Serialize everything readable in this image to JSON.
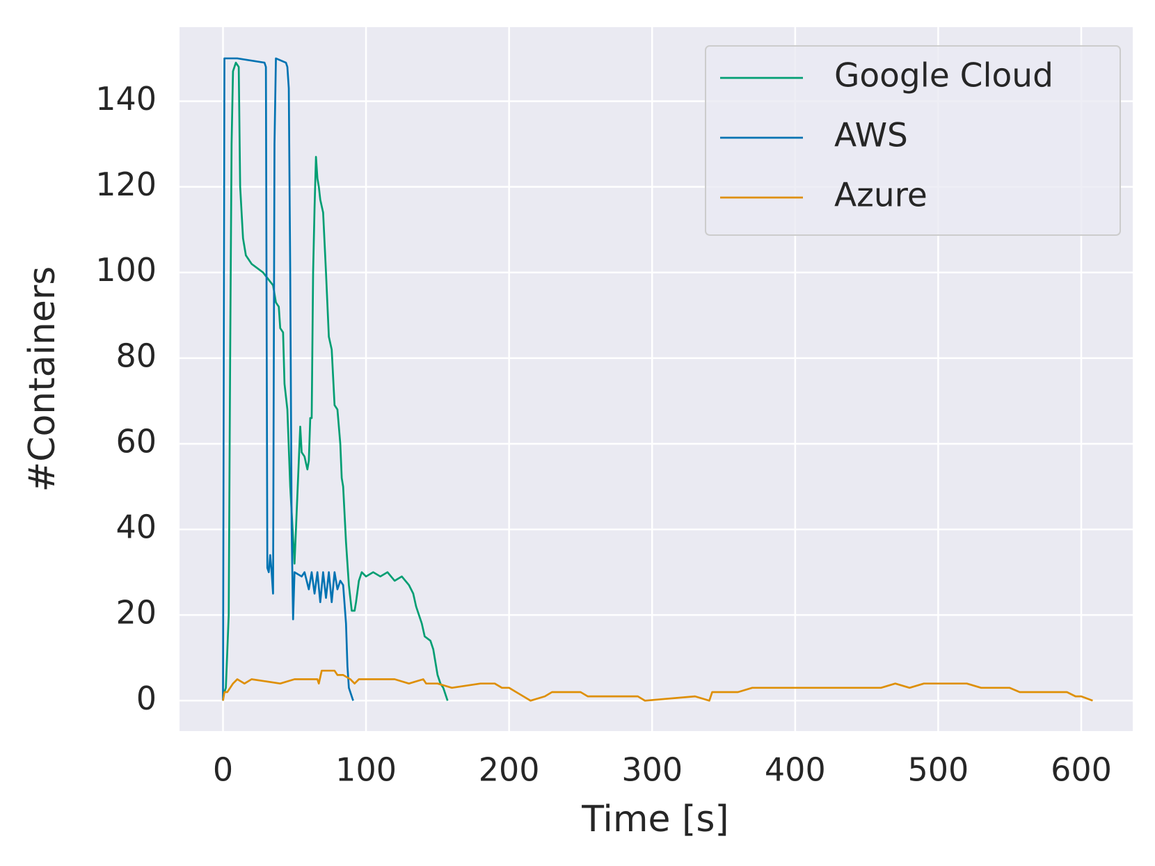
{
  "chart_data": {
    "type": "line",
    "xlabel": "Time [s]",
    "ylabel": "#Containers",
    "xlim": [
      -30.4,
      636
    ],
    "ylim": [
      -7.1,
      157.3
    ],
    "xticks": [
      0,
      100,
      200,
      300,
      400,
      500,
      600
    ],
    "yticks": [
      0,
      20,
      40,
      60,
      80,
      100,
      120,
      140
    ],
    "grid": true,
    "legend": "upper right",
    "series": [
      {
        "name": "Google Cloud",
        "color": "#029e73",
        "x": [
          0,
          2,
          4,
          5,
          6,
          7,
          9,
          11,
          12,
          14,
          16,
          20,
          28,
          35,
          37,
          39,
          40,
          42,
          43,
          45,
          47,
          49,
          50,
          51,
          52,
          54,
          55,
          57,
          59,
          60,
          61,
          62,
          63,
          64,
          65,
          66,
          67,
          68,
          70,
          72,
          74,
          76,
          78,
          80,
          82,
          83,
          84,
          86,
          88,
          89,
          90,
          92,
          93,
          95,
          97,
          100,
          105,
          110,
          115,
          120,
          125,
          130,
          133,
          135,
          137,
          139,
          141,
          145,
          147,
          148,
          150,
          152,
          154,
          156,
          157
        ],
        "values": [
          1,
          3,
          20,
          80,
          130,
          147,
          149,
          148,
          120,
          108,
          104,
          102,
          100,
          97,
          93,
          92,
          87,
          86,
          74,
          68,
          50,
          38,
          32,
          40,
          48,
          64,
          58,
          57,
          54,
          56,
          66,
          66,
          100,
          115,
          127,
          122,
          120,
          117,
          114,
          100,
          85,
          82,
          69,
          68,
          60,
          52,
          50,
          37,
          27,
          24,
          21,
          21,
          23,
          28,
          30,
          29,
          30,
          29,
          30,
          28,
          29,
          27,
          25,
          22,
          20,
          18,
          15,
          14,
          12,
          10,
          6,
          4,
          3,
          1,
          0
        ]
      },
      {
        "name": "AWS",
        "color": "#0173b2",
        "x": [
          0,
          1,
          10,
          29,
          30,
          31,
          32,
          33,
          34,
          35,
          36,
          37,
          44,
          45,
          46,
          47,
          48,
          49,
          50,
          55,
          57,
          60,
          62,
          64,
          66,
          68,
          70,
          72,
          74,
          76,
          78,
          80,
          82,
          84,
          86,
          87,
          88,
          90,
          91
        ],
        "values": [
          0,
          150,
          150,
          149,
          148,
          31,
          30,
          34,
          30,
          25,
          130,
          150,
          149,
          148,
          143,
          100,
          40,
          19,
          30,
          29,
          30,
          26,
          30,
          25,
          30,
          23,
          30,
          24,
          30,
          23,
          30,
          26,
          28,
          27,
          18,
          8,
          3,
          1,
          0
        ]
      },
      {
        "name": "Azure",
        "color": "#de8f05",
        "x": [
          0,
          1,
          3,
          5,
          7,
          10,
          15,
          20,
          40,
          50,
          66,
          67,
          69,
          78,
          80,
          84,
          89,
          92,
          95,
          110,
          120,
          130,
          140,
          142,
          150,
          160,
          180,
          190,
          195,
          200,
          205,
          210,
          215,
          225,
          230,
          250,
          255,
          270,
          290,
          295,
          330,
          340,
          342,
          350,
          360,
          370,
          400,
          440,
          460,
          470,
          480,
          490,
          520,
          530,
          550,
          557,
          590,
          596,
          600,
          608
        ],
        "values": [
          0,
          2,
          2,
          3,
          4,
          5,
          4,
          5,
          4,
          5,
          5,
          4,
          7,
          7,
          6,
          6,
          5,
          4,
          5,
          5,
          5,
          4,
          5,
          4,
          4,
          3,
          4,
          4,
          3,
          3,
          2,
          1,
          0,
          1,
          2,
          2,
          1,
          1,
          1,
          0,
          1,
          0,
          2,
          2,
          2,
          3,
          3,
          3,
          3,
          4,
          3,
          4,
          4,
          3,
          3,
          2,
          2,
          1,
          1,
          0
        ]
      }
    ]
  }
}
